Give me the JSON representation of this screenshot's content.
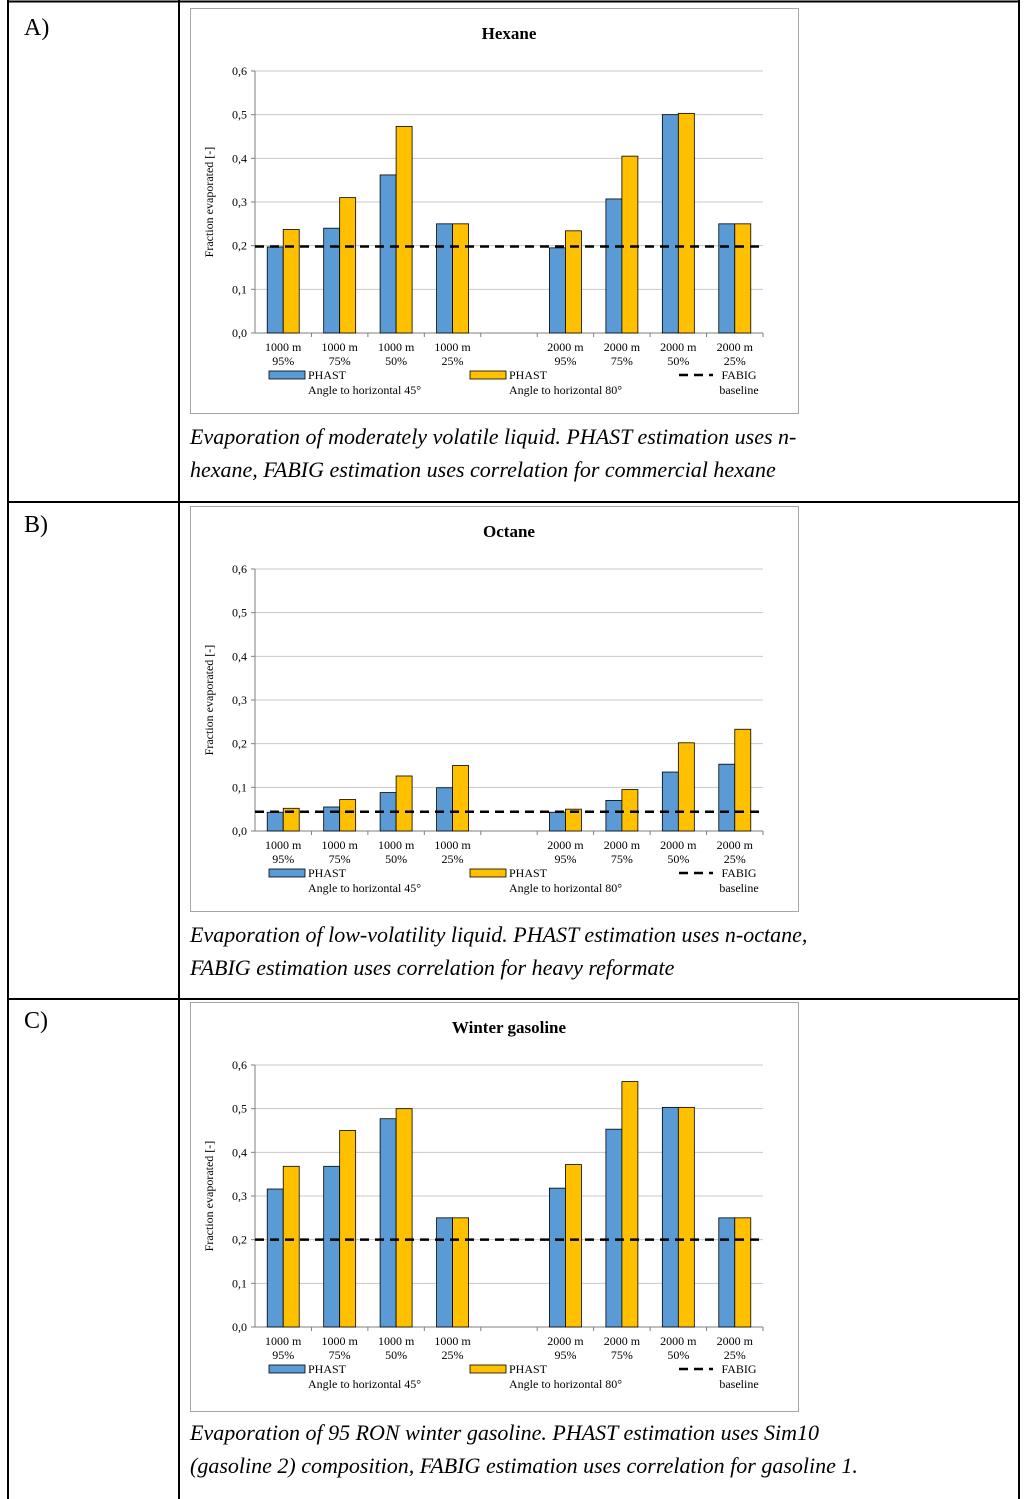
{
  "panels": [
    {
      "label": "A)",
      "caption_lines": [
        "Evaporation of moderately volatile liquid.  PHAST estimation uses n-",
        "hexane, FABIG estimation uses correlation for commercial hexane"
      ]
    },
    {
      "label": "B)",
      "caption_lines": [
        "Evaporation of low-volatility liquid.  PHAST estimation uses n-octane,",
        "FABIG estimation uses correlation for heavy reformate"
      ]
    },
    {
      "label": "C)",
      "caption_lines": [
        "Evaporation of 95 RON winter gasoline.  PHAST estimation uses Sim10",
        "(gasoline 2) composition, FABIG estimation uses correlation for gasoline 1."
      ]
    }
  ],
  "colors": {
    "phast45": "#5b9bd5",
    "phast80": "#ffc000",
    "baseline": "#000000",
    "grid": "#c8c8c8",
    "border": "#a6a6a6"
  },
  "chart_data": [
    {
      "type": "bar",
      "title": "Hexane",
      "ylabel": "Fraction evaporated [-]",
      "ylim": [
        0,
        0.6
      ],
      "yticks": [
        "0,0",
        "0,1",
        "0,2",
        "0,3",
        "0,4",
        "0,5",
        "0,6"
      ],
      "categories": [
        [
          "1000 m",
          "95%"
        ],
        [
          "1000 m",
          "75%"
        ],
        [
          "1000 m",
          "50%"
        ],
        [
          "1000 m",
          "25%"
        ],
        [
          "",
          ""
        ],
        [
          "2000 m",
          "95%"
        ],
        [
          "2000 m",
          "75%"
        ],
        [
          "2000 m",
          "50%"
        ],
        [
          "2000 m",
          "25%"
        ]
      ],
      "series": [
        {
          "name": [
            "PHAST",
            "Angle to horizontal 45°"
          ],
          "values": [
            0.197,
            0.24,
            0.362,
            0.25,
            null,
            0.195,
            0.307,
            0.5,
            0.25
          ]
        },
        {
          "name": [
            "PHAST",
            "Angle to horizontal 80°"
          ],
          "values": [
            0.237,
            0.31,
            0.473,
            0.25,
            null,
            0.234,
            0.405,
            0.503,
            0.25
          ]
        }
      ],
      "baseline": {
        "name": [
          "FABIG",
          "baseline"
        ],
        "value": 0.198
      },
      "grid": true,
      "legend": "bottom"
    },
    {
      "type": "bar",
      "title": "Octane",
      "ylabel": "Fraction evaporated [-]",
      "ylim": [
        0,
        0.6
      ],
      "yticks": [
        "0,0",
        "0,1",
        "0,2",
        "0,3",
        "0,4",
        "0,5",
        "0,6"
      ],
      "categories": [
        [
          "1000 m",
          "95%"
        ],
        [
          "1000 m",
          "75%"
        ],
        [
          "1000 m",
          "50%"
        ],
        [
          "1000 m",
          "25%"
        ],
        [
          "",
          ""
        ],
        [
          "2000 m",
          "95%"
        ],
        [
          "2000 m",
          "75%"
        ],
        [
          "2000 m",
          "50%"
        ],
        [
          "2000 m",
          "25%"
        ]
      ],
      "series": [
        {
          "name": [
            "PHAST",
            "Angle to horizontal 45°"
          ],
          "values": [
            0.043,
            0.055,
            0.088,
            0.099,
            null,
            0.043,
            0.07,
            0.135,
            0.153
          ]
        },
        {
          "name": [
            "PHAST",
            "Angle to horizontal 80°"
          ],
          "values": [
            0.052,
            0.072,
            0.126,
            0.15,
            null,
            0.05,
            0.095,
            0.202,
            0.233
          ]
        }
      ],
      "baseline": {
        "name": [
          "FABIG",
          "baseline"
        ],
        "value": 0.044
      },
      "grid": true,
      "legend": "bottom"
    },
    {
      "type": "bar",
      "title": "Winter gasoline",
      "ylabel": "Fraction evaporated [-]",
      "ylim": [
        0,
        0.6
      ],
      "yticks": [
        "0,0",
        "0,1",
        "0,2",
        "0,3",
        "0,4",
        "0,5",
        "0,6"
      ],
      "categories": [
        [
          "1000 m",
          "95%"
        ],
        [
          "1000 m",
          "75%"
        ],
        [
          "1000 m",
          "50%"
        ],
        [
          "1000 m",
          "25%"
        ],
        [
          "",
          ""
        ],
        [
          "2000 m",
          "95%"
        ],
        [
          "2000 m",
          "75%"
        ],
        [
          "2000 m",
          "50%"
        ],
        [
          "2000 m",
          "25%"
        ]
      ],
      "series": [
        {
          "name": [
            "PHAST",
            "Angle to horizontal 45°"
          ],
          "values": [
            0.316,
            0.368,
            0.477,
            0.25,
            null,
            0.318,
            0.453,
            0.503,
            0.25
          ]
        },
        {
          "name": [
            "PHAST",
            "Angle to horizontal 80°"
          ],
          "values": [
            0.368,
            0.45,
            0.5,
            0.25,
            null,
            0.372,
            0.562,
            0.503,
            0.25
          ]
        }
      ],
      "baseline": {
        "name": [
          "FABIG",
          "baseline"
        ],
        "value": 0.2
      },
      "grid": true,
      "legend": "bottom"
    }
  ]
}
